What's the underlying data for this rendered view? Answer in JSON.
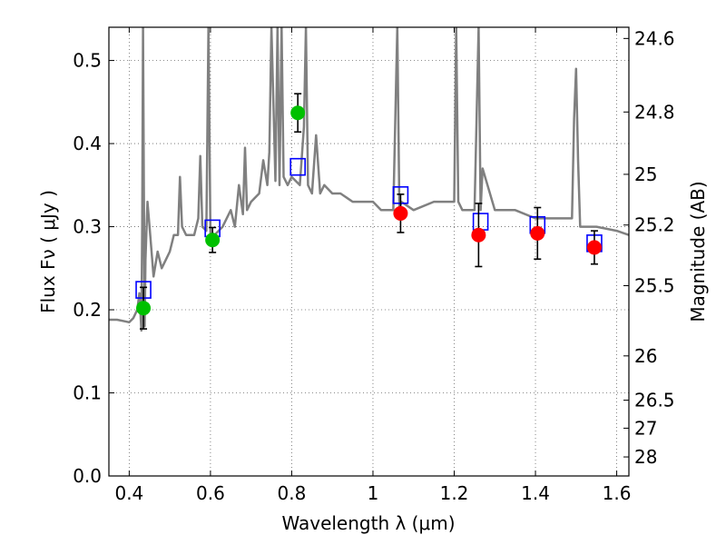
{
  "chart_data": {
    "type": "scatter",
    "xlabel": "Wavelength  λ (μm)",
    "ylabel_left": "Flux  Fν  ( μJy )",
    "ylabel_right": "Magnitude (AB)",
    "xlim": [
      0.35,
      1.63
    ],
    "ylim": [
      0.0,
      0.54
    ],
    "x_ticks": [
      0.4,
      0.6,
      0.8,
      1.0,
      1.2,
      1.4,
      1.6
    ],
    "x_tick_labels": [
      "0.4",
      "0.6",
      "0.8",
      "1",
      "1.2",
      "1.4",
      "1.6"
    ],
    "y_ticks": [
      0.0,
      0.1,
      0.2,
      0.3,
      0.4,
      0.5
    ],
    "y_tick_labels": [
      "0.0",
      "0.1",
      "0.2",
      "0.3",
      "0.4",
      "0.5"
    ],
    "right_ticks": [
      {
        "label": "24.6",
        "flux": 0.5265
      },
      {
        "label": "24.8",
        "flux": 0.438
      },
      {
        "label": "25",
        "flux": 0.363
      },
      {
        "label": "25.2",
        "flux": 0.302
      },
      {
        "label": "25.5",
        "flux": 0.229
      },
      {
        "label": "26",
        "flux": 0.1445
      },
      {
        "label": "26.5",
        "flux": 0.0912
      },
      {
        "label": "27",
        "flux": 0.0575
      },
      {
        "label": "28",
        "flux": 0.0229
      }
    ],
    "grid": true,
    "colors": {
      "spectrum": "#808080",
      "observed_green": "#00c000",
      "observed_red": "#ff0000",
      "model": "#0000ff",
      "errorbar": "#000000"
    },
    "spectrum": {
      "x": [
        0.35,
        0.37,
        0.39,
        0.4,
        0.41,
        0.42,
        0.425,
        0.43,
        0.432,
        0.434,
        0.436,
        0.438,
        0.44,
        0.445,
        0.45,
        0.46,
        0.47,
        0.48,
        0.49,
        0.5,
        0.51,
        0.52,
        0.525,
        0.53,
        0.54,
        0.55,
        0.56,
        0.57,
        0.575,
        0.58,
        0.59,
        0.595,
        0.6,
        0.605,
        0.61,
        0.62,
        0.63,
        0.64,
        0.65,
        0.66,
        0.67,
        0.68,
        0.685,
        0.69,
        0.7,
        0.72,
        0.73,
        0.74,
        0.745,
        0.75,
        0.76,
        0.765,
        0.77,
        0.775,
        0.78,
        0.79,
        0.795,
        0.8,
        0.82,
        0.83,
        0.835,
        0.84,
        0.85,
        0.86,
        0.87,
        0.88,
        0.9,
        0.92,
        0.95,
        0.98,
        1.0,
        1.02,
        1.05,
        1.06,
        1.065,
        1.07,
        1.1,
        1.15,
        1.2,
        1.205,
        1.21,
        1.22,
        1.25,
        1.26,
        1.265,
        1.27,
        1.3,
        1.35,
        1.4,
        1.45,
        1.49,
        1.495,
        1.5,
        1.505,
        1.51,
        1.55,
        1.6,
        1.63
      ],
      "y": [
        0.188,
        0.188,
        0.186,
        0.185,
        0.19,
        0.2,
        0.22,
        0.175,
        0.3,
        0.54,
        0.35,
        0.18,
        0.26,
        0.33,
        0.3,
        0.24,
        0.27,
        0.25,
        0.26,
        0.27,
        0.29,
        0.29,
        0.36,
        0.3,
        0.29,
        0.29,
        0.29,
        0.31,
        0.385,
        0.3,
        0.295,
        0.54,
        0.29,
        0.292,
        0.29,
        0.295,
        0.3,
        0.31,
        0.32,
        0.3,
        0.35,
        0.315,
        0.395,
        0.32,
        0.33,
        0.34,
        0.38,
        0.35,
        0.39,
        0.54,
        0.355,
        0.54,
        0.35,
        0.54,
        0.36,
        0.35,
        0.355,
        0.36,
        0.35,
        0.42,
        0.54,
        0.35,
        0.34,
        0.41,
        0.34,
        0.35,
        0.34,
        0.34,
        0.33,
        0.33,
        0.33,
        0.32,
        0.32,
        0.54,
        0.32,
        0.33,
        0.32,
        0.33,
        0.33,
        0.54,
        0.33,
        0.32,
        0.32,
        0.54,
        0.32,
        0.37,
        0.32,
        0.32,
        0.31,
        0.31,
        0.31,
        0.43,
        0.49,
        0.38,
        0.3,
        0.3,
        0.295,
        0.29
      ]
    },
    "model_points": [
      {
        "x": 0.435,
        "y": 0.224
      },
      {
        "x": 0.605,
        "y": 0.298
      },
      {
        "x": 0.815,
        "y": 0.372
      },
      {
        "x": 1.068,
        "y": 0.338
      },
      {
        "x": 1.265,
        "y": 0.306
      },
      {
        "x": 1.405,
        "y": 0.302
      },
      {
        "x": 1.545,
        "y": 0.28
      }
    ],
    "observed_points": [
      {
        "x": 0.435,
        "y": 0.202,
        "err": 0.025,
        "color": "green"
      },
      {
        "x": 0.605,
        "y": 0.284,
        "err": 0.015,
        "color": "green"
      },
      {
        "x": 0.815,
        "y": 0.437,
        "err": 0.023,
        "color": "green"
      },
      {
        "x": 1.068,
        "y": 0.316,
        "err": 0.023,
        "color": "red"
      },
      {
        "x": 1.26,
        "y": 0.29,
        "err": 0.038,
        "color": "red"
      },
      {
        "x": 1.405,
        "y": 0.292,
        "err": 0.031,
        "color": "red"
      },
      {
        "x": 1.545,
        "y": 0.275,
        "err": 0.02,
        "color": "red"
      }
    ]
  }
}
